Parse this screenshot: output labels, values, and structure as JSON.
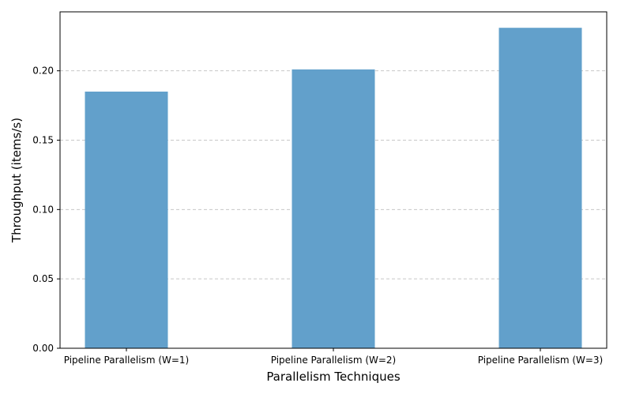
{
  "chart_data": {
    "type": "bar",
    "title": "",
    "xlabel": "Parallelism Techniques",
    "ylabel": "Throughput (items/s)",
    "categories": [
      "Pipeline Parallelism (W=1)",
      "Pipeline Parallelism (W=2)",
      "Pipeline Parallelism (W=3)"
    ],
    "values": [
      0.185,
      0.201,
      0.231
    ],
    "ylim": [
      0,
      0.2425
    ],
    "yticks": [
      "0.00",
      "0.05",
      "0.10",
      "0.15",
      "0.20"
    ],
    "grid": "y-dashed",
    "bar_color": "#62a0cb",
    "grid_color": "#c8c8c8"
  }
}
